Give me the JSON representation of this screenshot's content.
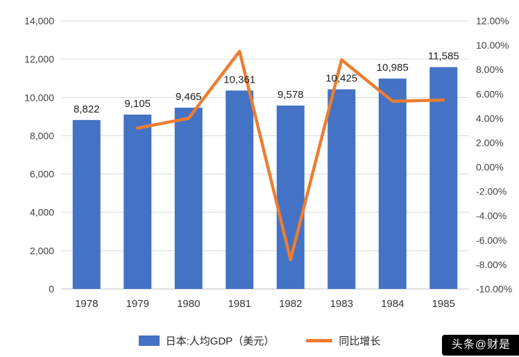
{
  "chart_data": {
    "type": "bar",
    "title": "",
    "xlabel": "",
    "ylabel": "",
    "categories": [
      "1978",
      "1979",
      "1980",
      "1981",
      "1982",
      "1983",
      "1984",
      "1985"
    ],
    "series": [
      {
        "name": "日本:人均GDP（美元）",
        "type": "bar",
        "axis": "left",
        "color": "#4472c4",
        "values": [
          8822,
          9105,
          9465,
          10361,
          9578,
          10425,
          10985,
          11585
        ],
        "labels": [
          "8,822",
          "9,105",
          "9,465",
          "10,361",
          "9,578",
          "10,425",
          "10,985",
          "11,585"
        ]
      },
      {
        "name": "同比增长",
        "type": "line",
        "axis": "right",
        "color": "#ed7d31",
        "values": [
          null,
          3.2,
          4.0,
          9.5,
          -7.6,
          8.8,
          5.4,
          5.5
        ]
      }
    ],
    "left_axis": {
      "min": 0,
      "max": 14000,
      "step": 2000,
      "ticks": [
        "14,000",
        "12,000",
        "10,000",
        "8,000",
        "6,000",
        "4,000",
        "2,000",
        "0"
      ]
    },
    "right_axis": {
      "min": -10,
      "max": 12,
      "step": 2,
      "ticks": [
        "12.00%",
        "10.00%",
        "8.00%",
        "6.00%",
        "4.00%",
        "2.00%",
        "0.00%",
        "-2.00%",
        "-4.00%",
        "-6.00%",
        "-8.00%",
        "-10.00%"
      ]
    },
    "grid": true,
    "legend_position": "bottom"
  },
  "legend": {
    "bar_label": "日本:人均GDP（美元）",
    "line_label": "同比增长"
  },
  "watermark": "头条@财是"
}
